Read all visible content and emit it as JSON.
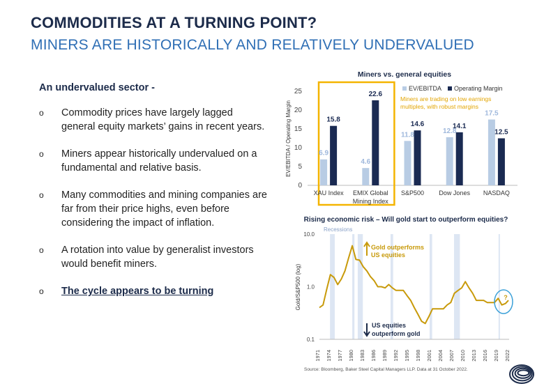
{
  "header": {
    "title": "COMMODITIES AT A TURNING POINT?",
    "subtitle": "MINERS ARE HISTORICALLY AND RELATIVELY UNDERVALUED"
  },
  "left_panel": {
    "heading": "An undervalued sector -",
    "bullet_marker": "o",
    "bullets": [
      "Commodity prices have largely lagged general equity markets’ gains in recent years.",
      "Miners appear historically undervalued on a fundamental and relative basis.",
      "Many commodities and mining companies are far from their price highs, even before considering the impact of inflation.",
      "A rotation into value by generalist investors would benefit miners.",
      "The cycle appears to be turning"
    ]
  },
  "colors": {
    "ev": "#b8cce4",
    "margin": "#1a2a52",
    "highlight": "#f4b400",
    "gold": "#c89a0a",
    "recession": "#dde6f3",
    "circle": "#3aa0d8"
  },
  "chart_data": [
    {
      "type": "bar",
      "title": "Miners vs. general equities",
      "ylabel": "EV/EBITDA / Operating Margin",
      "ylim": [
        0,
        25
      ],
      "yticks": [
        0,
        5,
        10,
        15,
        20,
        25
      ],
      "categories": [
        "XAU Index",
        "EMIX Global Mining Index",
        "S&P500",
        "Dow Jones",
        "NASDAQ"
      ],
      "category_lines": [
        [
          "XAU Index"
        ],
        [
          "EMIX Global",
          "Mining Index"
        ],
        [
          "S&P500"
        ],
        [
          "Dow Jones"
        ],
        [
          "NASDAQ"
        ]
      ],
      "series": [
        {
          "name": "EV/EBITDA",
          "values": [
            6.9,
            4.6,
            11.8,
            12.8,
            17.5
          ]
        },
        {
          "name": "Operating Margin",
          "values": [
            15.8,
            22.6,
            14.6,
            14.1,
            12.5
          ]
        }
      ],
      "label_strings": {
        "EV/EBITDA": [
          "6.9",
          "4.6",
          "11.8",
          "12.8",
          "17.5"
        ],
        "Operating Margin": [
          "15.8",
          "22.6",
          "14.6",
          "14.1",
          "12.5"
        ]
      },
      "annotation_lines": [
        "Miners are trading on low earnings",
        "multiples, with robust margins"
      ],
      "highlight_categories": [
        "XAU Index",
        "EMIX Global Mining Index"
      ],
      "legend": "top-right"
    },
    {
      "type": "line",
      "title": "Rising economic risk – Will gold start to outperform equities?",
      "ylabel": "Gold/S&P500 (log)",
      "yscale": "log",
      "ylim": [
        0.1,
        10.0
      ],
      "ytick_labels": [
        "10.0",
        "1.0",
        "0.1"
      ],
      "ytick_values": [
        10,
        1,
        0.1
      ],
      "xlim": [
        1971,
        2023
      ],
      "xtick_labels": [
        "1971",
        "1974",
        "1977",
        "1980",
        "1983",
        "1986",
        "1989",
        "1992",
        "1995",
        "1998",
        "2001",
        "2004",
        "2007",
        "2010",
        "2013",
        "2016",
        "2019",
        "2022"
      ],
      "recessions_label": "Recessions",
      "recessions": [
        [
          1973.9,
          1975.2
        ],
        [
          1980.0,
          1980.6
        ],
        [
          1981.5,
          1982.9
        ],
        [
          1990.5,
          1991.2
        ],
        [
          2001.2,
          2001.9
        ],
        [
          2007.9,
          2009.5
        ],
        [
          2020.1,
          2020.4
        ]
      ],
      "series": [
        {
          "name": "Gold/S&P500",
          "x": [
            1971,
            1972,
            1973,
            1974,
            1975,
            1976,
            1977,
            1978,
            1979,
            1980,
            1981,
            1982,
            1983,
            1984,
            1985,
            1986,
            1987,
            1988,
            1989,
            1990,
            1991,
            1992,
            1993,
            1994,
            1995,
            1996,
            1997,
            1998,
            1999,
            2000,
            2001,
            2002,
            2003,
            2004,
            2005,
            2006,
            2007,
            2008,
            2009,
            2010,
            2011,
            2012,
            2013,
            2014,
            2015,
            2016,
            2017,
            2018,
            2019,
            2020,
            2021,
            2022,
            2022.8
          ],
          "values": [
            0.4,
            0.45,
            0.9,
            1.7,
            1.5,
            1.1,
            1.4,
            2.0,
            3.5,
            6.0,
            3.3,
            3.2,
            2.4,
            2.0,
            1.55,
            1.3,
            1.0,
            1.0,
            0.95,
            1.1,
            0.95,
            0.85,
            0.85,
            0.85,
            0.68,
            0.55,
            0.4,
            0.3,
            0.22,
            0.2,
            0.27,
            0.38,
            0.38,
            0.38,
            0.38,
            0.45,
            0.5,
            0.75,
            0.85,
            0.95,
            1.25,
            0.95,
            0.75,
            0.55,
            0.55,
            0.55,
            0.5,
            0.5,
            0.5,
            0.6,
            0.45,
            0.48,
            0.55
          ]
        }
      ],
      "annotations": [
        {
          "lines": [
            "Gold outperforms",
            "US equities"
          ],
          "arrow": "up"
        },
        {
          "lines": [
            "US equities",
            "outperform gold"
          ],
          "arrow": "down"
        },
        {
          "text": "?",
          "highlight": "circle"
        }
      ]
    }
  ],
  "source": "Source: Bloomberg, Baker Steel Capital Managers LLP. Data at 31 October 2022.",
  "logo": "spiral-logo"
}
